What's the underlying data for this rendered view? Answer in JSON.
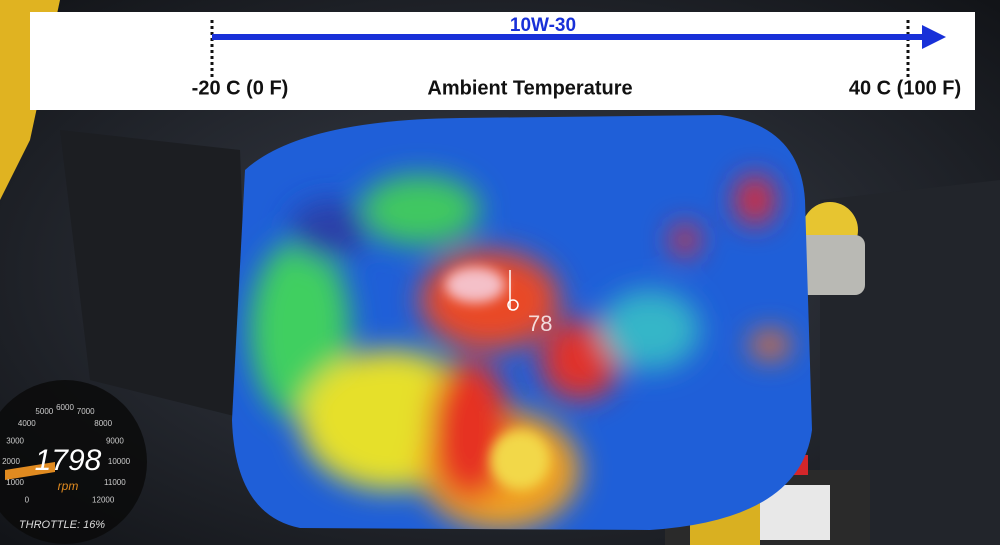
{
  "banner": {
    "oil_grade": "10W-30",
    "left_label": "-20 C (0 F)",
    "axis_label": "Ambient Temperature",
    "right_label": "40 C (100 F)"
  },
  "thermal": {
    "spot_reading": "78"
  },
  "gauge": {
    "ticks": [
      0,
      1000,
      2000,
      3000,
      4000,
      5000,
      6000,
      7000,
      8000,
      9000,
      10000,
      11000,
      12000
    ],
    "rpm": 1798,
    "unit": "rpm",
    "throttle": "THROTTLE: 16%"
  }
}
